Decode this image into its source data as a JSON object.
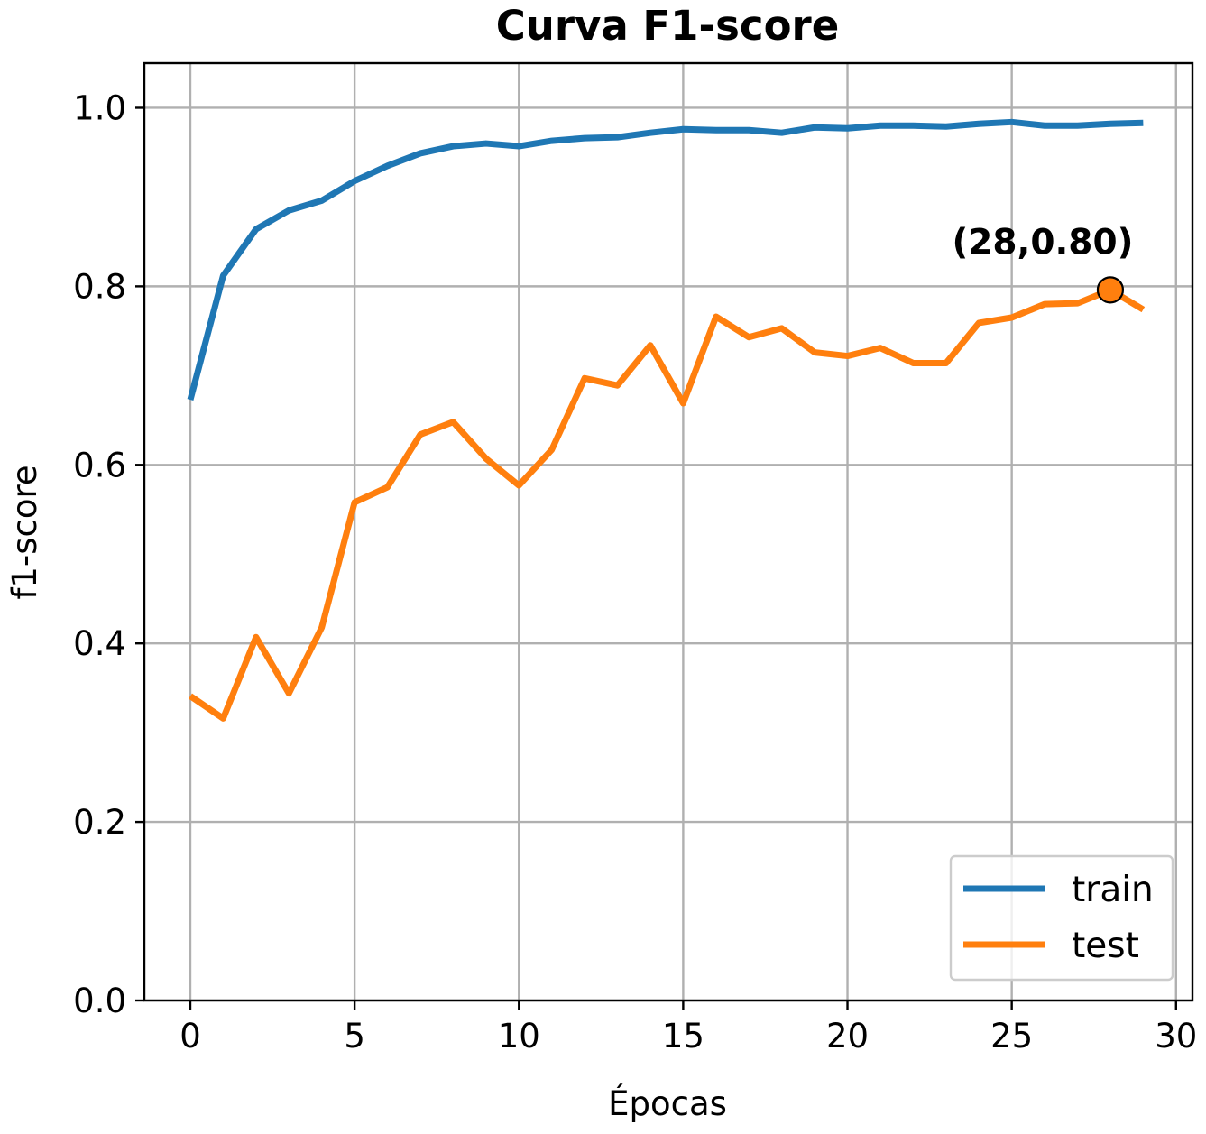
{
  "chart_data": {
    "type": "line",
    "title": "Curva F1-score",
    "xlabel": "Épocas",
    "ylabel": "f1-score",
    "xlim": [
      -1.4,
      30.5
    ],
    "ylim": [
      0.0,
      1.05
    ],
    "xticks": [
      0,
      5,
      10,
      15,
      20,
      25,
      30
    ],
    "xtick_labels": [
      "0",
      "5",
      "10",
      "15",
      "20",
      "25",
      "30"
    ],
    "yticks": [
      0.0,
      0.2,
      0.4,
      0.6,
      0.8,
      1.0
    ],
    "ytick_labels": [
      "0.0",
      "0.2",
      "0.4",
      "0.6",
      "0.8",
      "1.0"
    ],
    "grid": true,
    "legend_position": "bottom-right",
    "x": [
      0,
      1,
      2,
      3,
      4,
      5,
      6,
      7,
      8,
      9,
      10,
      11,
      12,
      13,
      14,
      15,
      16,
      17,
      18,
      19,
      20,
      21,
      22,
      23,
      24,
      25,
      26,
      27,
      28,
      29
    ],
    "series": [
      {
        "name": "train",
        "color": "#1f77b4",
        "values": [
          0.673,
          0.812,
          0.864,
          0.885,
          0.896,
          0.918,
          0.935,
          0.949,
          0.957,
          0.96,
          0.957,
          0.963,
          0.966,
          0.967,
          0.972,
          0.976,
          0.975,
          0.975,
          0.972,
          0.978,
          0.977,
          0.98,
          0.98,
          0.979,
          0.982,
          0.984,
          0.98,
          0.98,
          0.982,
          0.983
        ]
      },
      {
        "name": "test",
        "color": "#ff7f0e",
        "values": [
          0.341,
          0.316,
          0.407,
          0.344,
          0.418,
          0.558,
          0.575,
          0.634,
          0.648,
          0.607,
          0.577,
          0.617,
          0.697,
          0.689,
          0.734,
          0.669,
          0.766,
          0.743,
          0.753,
          0.726,
          0.722,
          0.731,
          0.714,
          0.714,
          0.759,
          0.765,
          0.78,
          0.781,
          0.796,
          0.774
        ]
      }
    ],
    "annotation": {
      "text": "(28,0.80)",
      "x": 28,
      "y": 0.796,
      "marker_color": "#ff7f0e"
    }
  }
}
